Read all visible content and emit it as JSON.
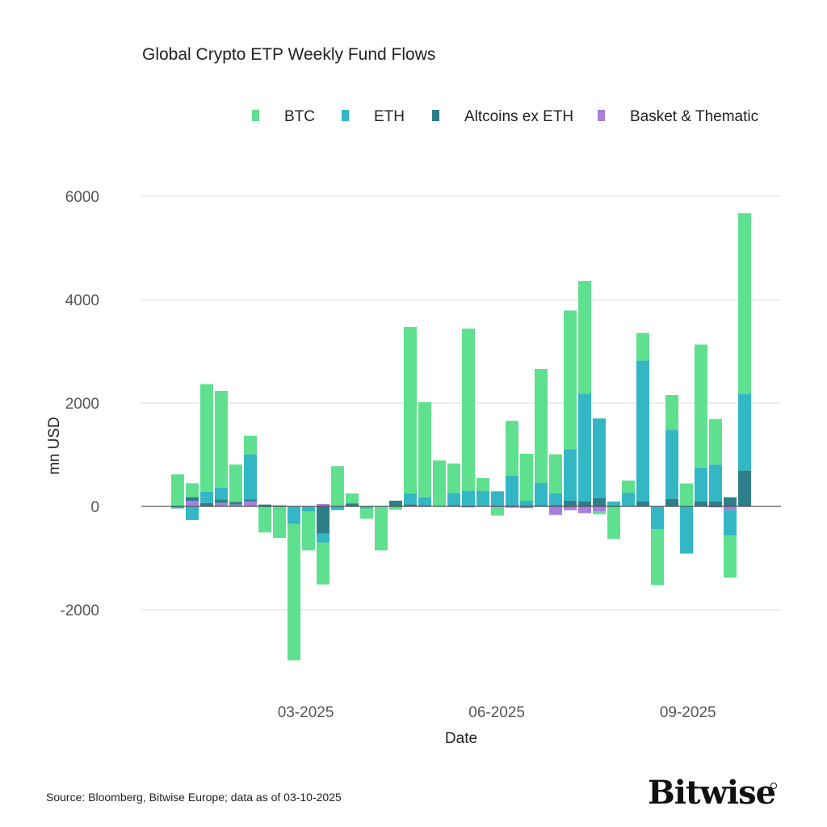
{
  "chart_data": {
    "type": "bar",
    "stacked": true,
    "title": "Global Crypto ETP Weekly Fund Flows",
    "xlabel": "Date",
    "ylabel": "mn USD",
    "ylim": [
      -2500,
      6000
    ],
    "yticks": [
      -2000,
      0,
      2000,
      4000,
      6000
    ],
    "ytick_labels": [
      "-2000",
      "0",
      "2000",
      "4000",
      "6000"
    ],
    "xtick_labels": [
      {
        "date": "2025-03-01",
        "label": "03-2025"
      },
      {
        "date": "2025-06-01",
        "label": "06-2025"
      },
      {
        "date": "2025-09-01",
        "label": "09-2025"
      }
    ],
    "grid": true,
    "legend_position": "top-right",
    "categories": [
      "2024-12-27",
      "2025-01-03",
      "2025-01-10",
      "2025-01-17",
      "2025-01-24",
      "2025-01-31",
      "2025-02-07",
      "2025-02-14",
      "2025-02-21",
      "2025-02-28",
      "2025-03-07",
      "2025-03-14",
      "2025-03-21",
      "2025-03-28",
      "2025-04-04",
      "2025-04-11",
      "2025-04-18",
      "2025-04-25",
      "2025-05-02",
      "2025-05-09",
      "2025-05-16",
      "2025-05-23",
      "2025-05-30",
      "2025-06-06",
      "2025-06-13",
      "2025-06-20",
      "2025-06-27",
      "2025-07-04",
      "2025-07-11",
      "2025-07-18",
      "2025-07-25",
      "2025-08-01",
      "2025-08-08",
      "2025-08-15",
      "2025-08-22",
      "2025-08-29",
      "2025-09-05",
      "2025-09-12",
      "2025-09-19",
      "2025-09-26"
    ],
    "series": [
      {
        "name": "BTC",
        "color": "#5FE08F",
        "values": [
          620,
          270,
          2080,
          1875,
          719,
          359,
          -490,
          -600,
          -2636,
          -750,
          -809,
          767,
          190,
          -200,
          -830,
          -63,
          3220,
          1843,
          887,
          569,
          3137,
          245,
          -160,
          1060,
          908,
          2198,
          757,
          2688,
          2177,
          -52,
          -631,
          235,
          538,
          -1086,
          673,
          444,
          2380,
          882,
          -814,
          3494
        ]
      },
      {
        "name": "ETH",
        "color": "#33B7C5",
        "values": [
          -40,
          -264,
          220,
          228,
          0,
          868,
          -15,
          -10,
          -341,
          -100,
          -174,
          -72,
          0,
          -40,
          -20,
          0,
          209,
          146,
          0,
          235,
          303,
          303,
          292,
          580,
          94,
          433,
          224,
          992,
          2088,
          1545,
          73,
          266,
          2725,
          -438,
          1336,
          -913,
          658,
          715,
          -491,
          1485
        ]
      },
      {
        "name": "Altcoins ex ETH",
        "color": "#2F7F8A",
        "values": [
          0,
          70,
          66,
          66,
          54,
          42,
          36,
          20,
          0,
          0,
          -527,
          10,
          60,
          0,
          0,
          110,
          42,
          26,
          0,
          26,
          0,
          0,
          0,
          15,
          15,
          26,
          26,
          110,
          94,
          156,
          20,
          0,
          94,
          0,
          146,
          0,
          94,
          94,
          177,
          693
        ]
      },
      {
        "name": "Basket & Thematic",
        "color": "#A97EE0",
        "values": [
          0,
          108,
          0,
          66,
          36,
          96,
          0,
          0,
          0,
          0,
          48,
          0,
          0,
          0,
          0,
          0,
          0,
          0,
          0,
          0,
          -20,
          0,
          -20,
          -26,
          -35,
          0,
          -167,
          -73,
          -130,
          -99,
          0,
          0,
          0,
          0,
          0,
          0,
          0,
          -20,
          -73,
          0
        ]
      }
    ]
  },
  "footer": {
    "source": "Source: Bloomberg, Bitwise Europe; data as of  03-10-2025",
    "logo": "Bitwise"
  }
}
